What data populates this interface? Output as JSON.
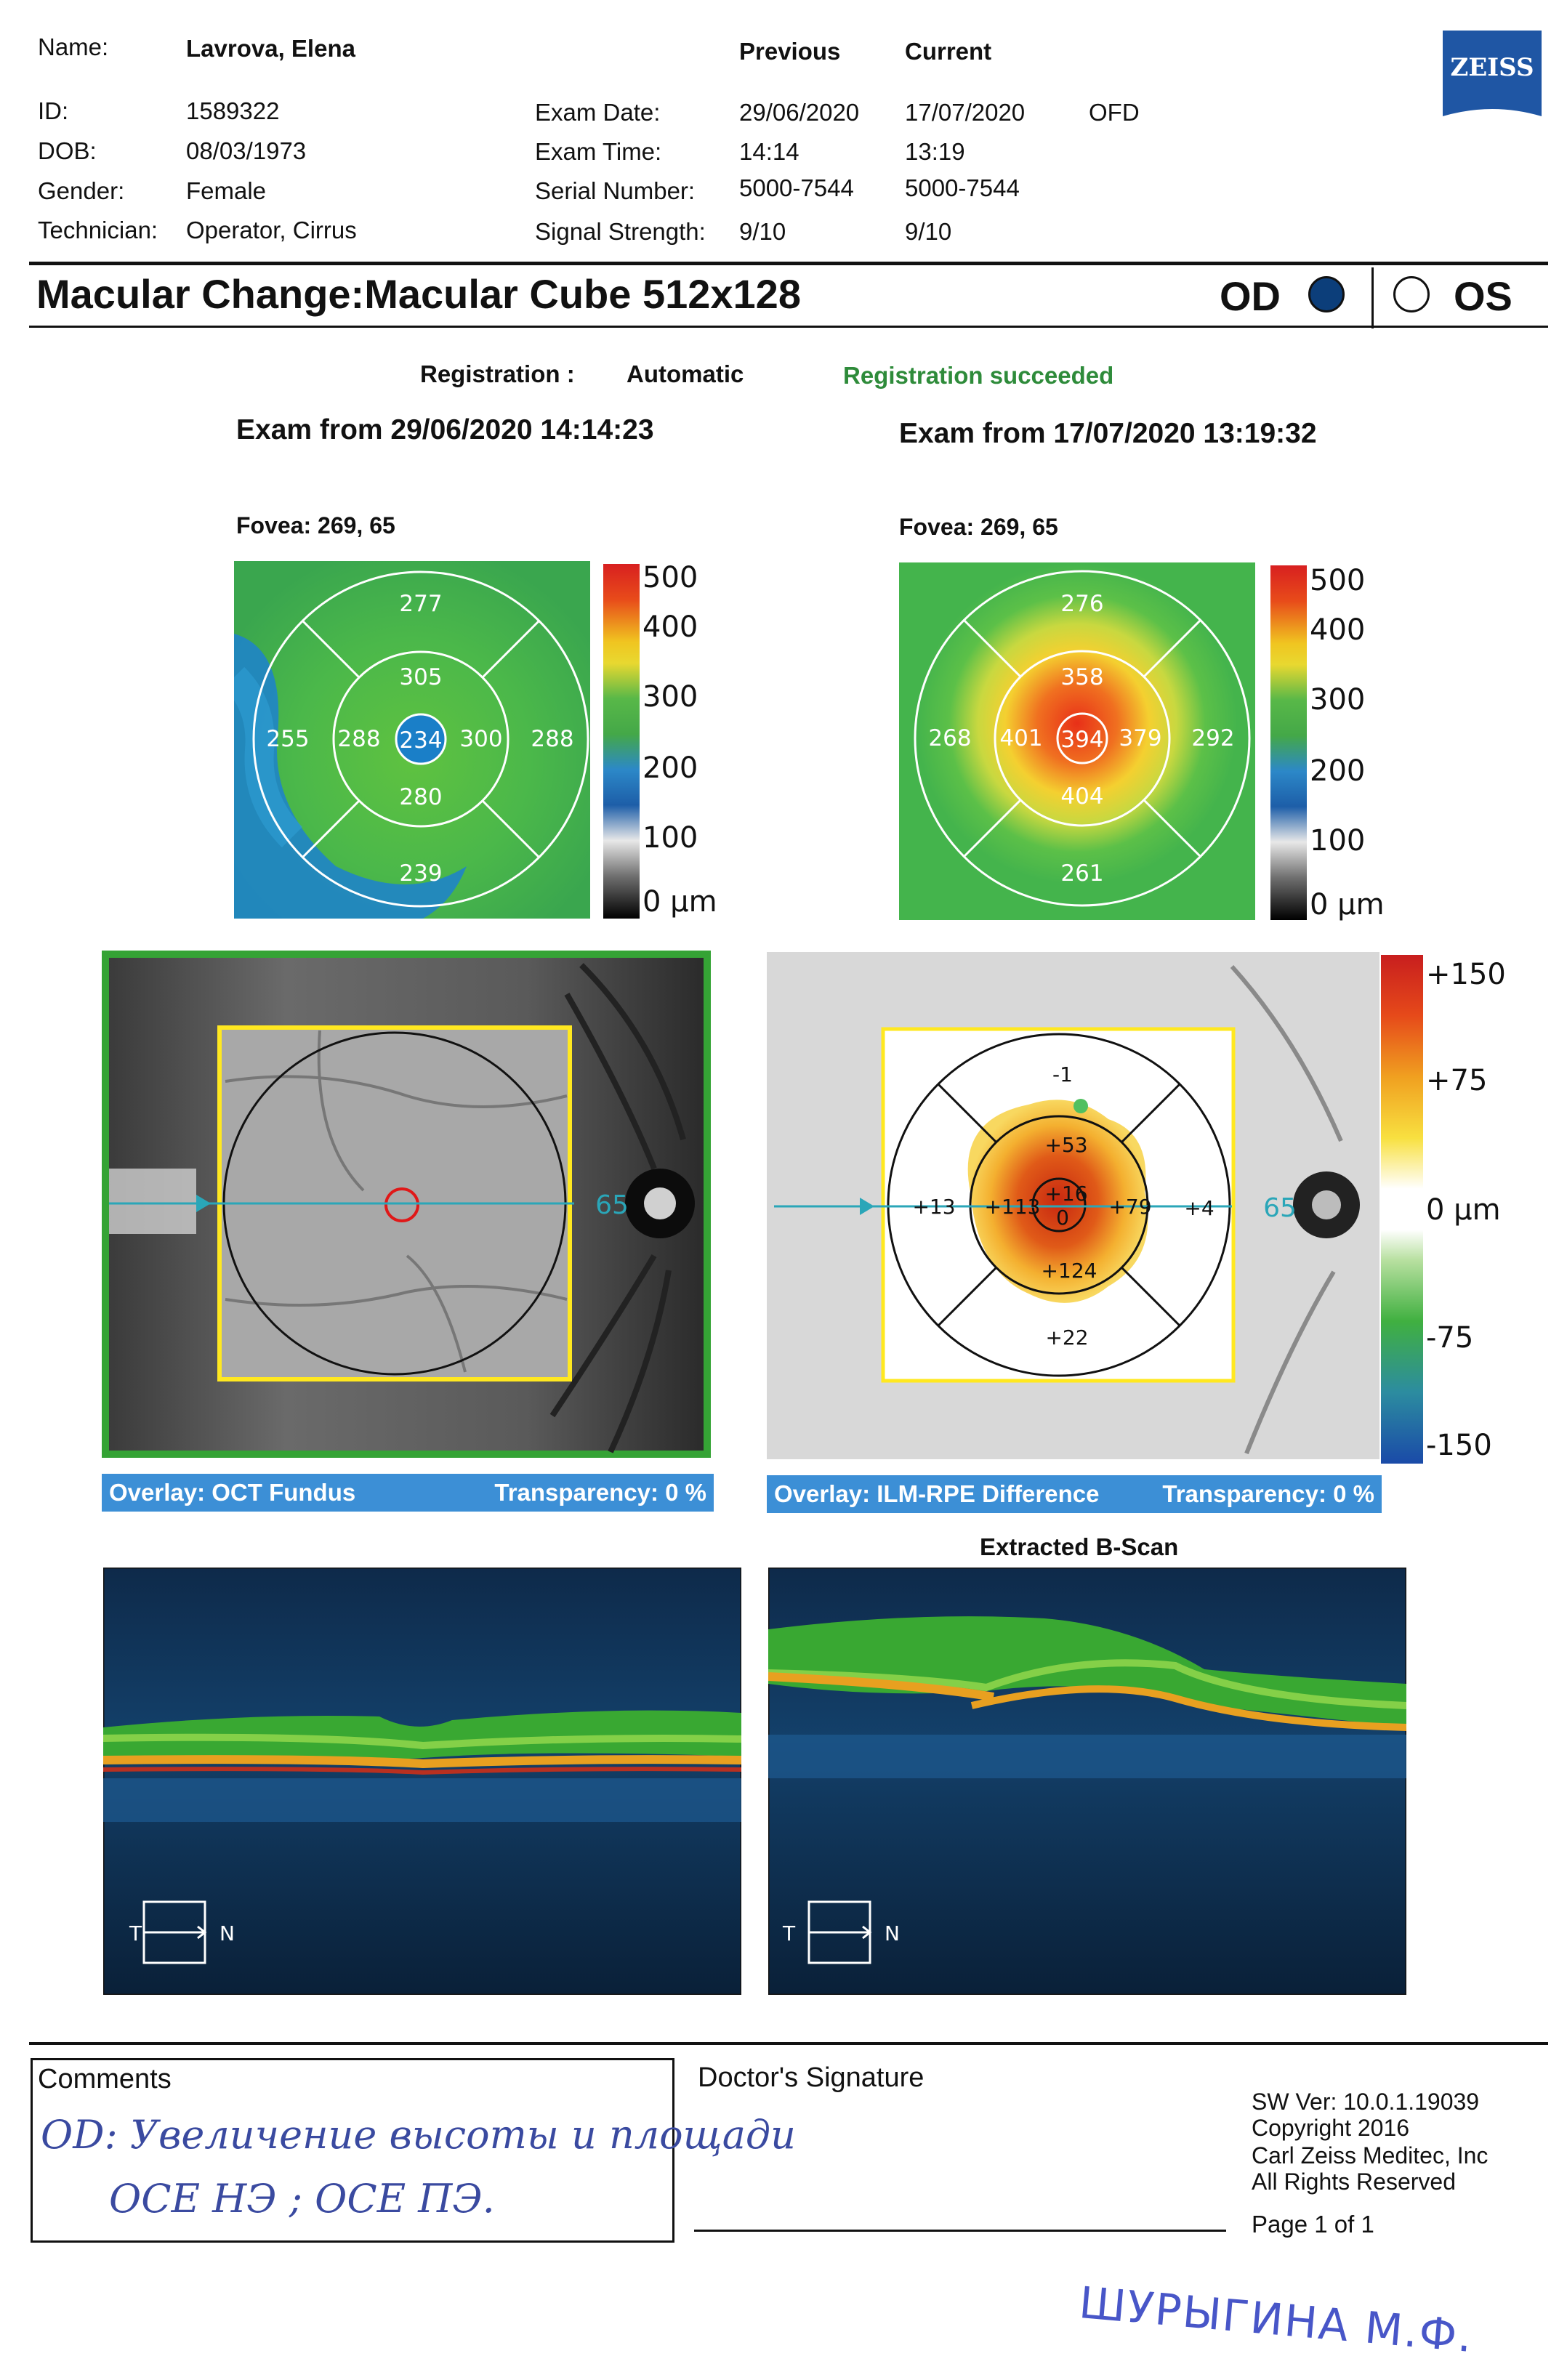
{
  "patient": {
    "name_label": "Name:",
    "name": "Lavrova, Elena",
    "id_label": "ID:",
    "id": "1589322",
    "dob_label": "DOB:",
    "dob": "08/03/1973",
    "gender_label": "Gender:",
    "gender": "Female",
    "technician_label": "Technician:",
    "technician": "Operator, Cirrus"
  },
  "exams": {
    "previous_header": "Previous",
    "current_header": "Current",
    "exam_date_label": "Exam Date:",
    "exam_time_label": "Exam Time:",
    "serial_label": "Serial Number:",
    "signal_label": "Signal Strength:",
    "previous": {
      "date": "29/06/2020",
      "time": "14:14",
      "serial": "5000-7544",
      "signal": "9/10"
    },
    "current": {
      "date": "17/07/2020",
      "time": "13:19",
      "serial": "5000-7544",
      "signal": "9/10"
    },
    "ofd": "OFD"
  },
  "brand": {
    "logo": "ZEISS",
    "color": "#1f56a4"
  },
  "report": {
    "title": "Macular Change:Macular Cube 512x128",
    "od_label": "OD",
    "os_label": "OS",
    "selected_eye": "OD",
    "registration_label": "Registration :",
    "registration_value": "Automatic",
    "registration_status": "Registration succeeded",
    "registration_status_color": "#2e8b3a"
  },
  "left_exam": {
    "heading": "Exam from 29/06/2020 14:14:23",
    "fovea": "Fovea: 269, 65",
    "etdrs": {
      "outer_top": "277",
      "outer_left": "255",
      "outer_right": "288",
      "outer_bottom": "239",
      "inner_top": "305",
      "inner_left": "288",
      "inner_right": "300",
      "inner_bottom": "280",
      "center": "234"
    }
  },
  "right_exam": {
    "heading": "Exam from 17/07/2020 13:19:32",
    "fovea": "Fovea: 269, 65",
    "etdrs": {
      "outer_top": "276",
      "outer_left": "268",
      "outer_right": "292",
      "outer_bottom": "261",
      "inner_top": "358",
      "inner_left": "401",
      "inner_right": "379",
      "inner_bottom": "404",
      "center": "394"
    }
  },
  "thickness_scale": {
    "labels": [
      "500",
      "400",
      "300",
      "200",
      "100",
      "0 µm"
    ]
  },
  "fundus_left": {
    "marker": "65",
    "overlay_label": "Overlay: OCT Fundus",
    "transparency_label": "Transparency: 0 %"
  },
  "fundus_right": {
    "marker": "65",
    "overlay_label": "Overlay: ILM-RPE Difference",
    "transparency_label": "Transparency: 0 %",
    "diff": {
      "outer_top": "-1",
      "inner_top": "+53",
      "outer_left": "+13",
      "inner_left": "+113",
      "center_top": "+16",
      "center_bottom": "0",
      "inner_right": "+79",
      "outer_right": "+4",
      "inner_bottom": "+124",
      "outer_bottom": "+22"
    }
  },
  "difference_scale": {
    "labels": [
      "+150",
      "+75",
      "0 µm",
      "-75",
      "-150"
    ]
  },
  "bscan": {
    "title": "Extracted B-Scan",
    "temporal": "T",
    "nasal": "N"
  },
  "footer": {
    "comments_label": "Comments",
    "comment_line1": "OD: Увеличение высоты и площади",
    "comment_line2": "ОСЕ НЭ ; ОСЕ ПЭ.",
    "signature_label": "Doctor's Signature",
    "sw_ver": "SW Ver: 10.0.1.19039",
    "copyright": "Copyright 2016",
    "company": "Carl Zeiss Meditec, Inc",
    "rights": "All Rights Reserved",
    "page": "Page 1 of 1",
    "doctor_stamp": "ШУРЫГИНА М.Ф."
  }
}
